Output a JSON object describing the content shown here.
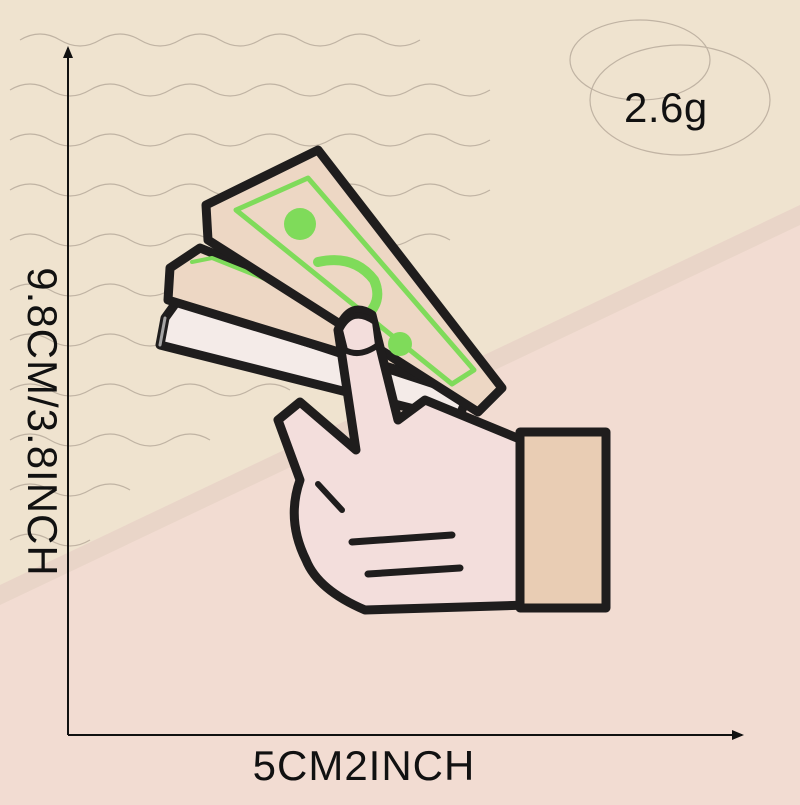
{
  "product": {
    "weight_label": "2.6g",
    "width_label": "5CM2INCH",
    "height_label": "9.8CM/3.8INCH"
  },
  "image": {
    "subject": "embroidered-patch-hand-holding-money",
    "colors": {
      "background": "#f2dcd2",
      "paper": "#efe3cf",
      "outline": "#1f1d1d",
      "bill": "#edd7c4",
      "money_green": "#7fdb5a",
      "hand": "#f3dedc",
      "cuff": "#e9cdb4",
      "measure_line": "#111111"
    }
  }
}
